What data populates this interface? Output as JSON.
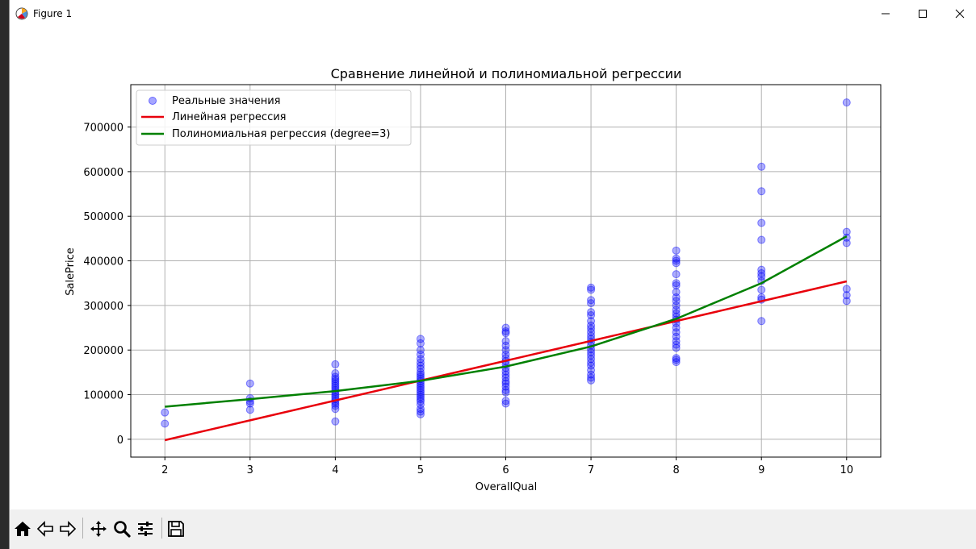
{
  "window": {
    "title": "Figure 1"
  },
  "toolbar": {
    "buttons": [
      {
        "name": "home-icon"
      },
      {
        "name": "back-icon"
      },
      {
        "name": "forward-icon"
      },
      {
        "name": "pan-icon"
      },
      {
        "name": "zoom-icon"
      },
      {
        "name": "configure-subplots-icon"
      },
      {
        "name": "save-icon"
      }
    ]
  },
  "colors": {
    "scatter": "#0000ff",
    "linear": "#e8000b",
    "poly": "#008000",
    "grid": "#b0b0b0"
  },
  "chart_data": {
    "type": "scatter",
    "title": "Сравнение линейной и полиномиальной регрессии",
    "xlabel": "OverallQual",
    "ylabel": "SalePrice",
    "xlim": [
      1.6,
      10.4
    ],
    "ylim": [
      -40000,
      795000
    ],
    "xticks": [
      2,
      3,
      4,
      5,
      6,
      7,
      8,
      9,
      10
    ],
    "yticks": [
      0,
      100000,
      200000,
      300000,
      400000,
      500000,
      600000,
      700000
    ],
    "grid": true,
    "legend_position": "upper-left",
    "series": [
      {
        "name": "Реальные значения",
        "kind": "scatter",
        "points": [
          [
            2,
            60000
          ],
          [
            2,
            35000
          ],
          [
            3,
            125000
          ],
          [
            3,
            92000
          ],
          [
            3,
            85000
          ],
          [
            3,
            80000
          ],
          [
            3,
            66000
          ],
          [
            4,
            168000
          ],
          [
            4,
            148000
          ],
          [
            4,
            140000
          ],
          [
            4,
            135000
          ],
          [
            4,
            130000
          ],
          [
            4,
            125000
          ],
          [
            4,
            120000
          ],
          [
            4,
            115000
          ],
          [
            4,
            110000
          ],
          [
            4,
            105000
          ],
          [
            4,
            100000
          ],
          [
            4,
            95000
          ],
          [
            4,
            90000
          ],
          [
            4,
            85000
          ],
          [
            4,
            80000
          ],
          [
            4,
            75000
          ],
          [
            4,
            68000
          ],
          [
            4,
            40000
          ],
          [
            5,
            225000
          ],
          [
            5,
            215000
          ],
          [
            5,
            200000
          ],
          [
            5,
            190000
          ],
          [
            5,
            180000
          ],
          [
            5,
            172000
          ],
          [
            5,
            165000
          ],
          [
            5,
            158000
          ],
          [
            5,
            150000
          ],
          [
            5,
            145000
          ],
          [
            5,
            140000
          ],
          [
            5,
            135000
          ],
          [
            5,
            130000
          ],
          [
            5,
            125000
          ],
          [
            5,
            120000
          ],
          [
            5,
            115000
          ],
          [
            5,
            110000
          ],
          [
            5,
            105000
          ],
          [
            5,
            100000
          ],
          [
            5,
            95000
          ],
          [
            5,
            90000
          ],
          [
            5,
            85000
          ],
          [
            5,
            78000
          ],
          [
            5,
            68000
          ],
          [
            5,
            62000
          ],
          [
            5,
            56000
          ],
          [
            6,
            250000
          ],
          [
            6,
            242000
          ],
          [
            6,
            238000
          ],
          [
            6,
            220000
          ],
          [
            6,
            210000
          ],
          [
            6,
            200000
          ],
          [
            6,
            190000
          ],
          [
            6,
            182000
          ],
          [
            6,
            175000
          ],
          [
            6,
            168000
          ],
          [
            6,
            160000
          ],
          [
            6,
            152000
          ],
          [
            6,
            145000
          ],
          [
            6,
            138000
          ],
          [
            6,
            130000
          ],
          [
            6,
            125000
          ],
          [
            6,
            118000
          ],
          [
            6,
            110000
          ],
          [
            6,
            105000
          ],
          [
            6,
            86000
          ],
          [
            6,
            80000
          ],
          [
            7,
            340000
          ],
          [
            7,
            335000
          ],
          [
            7,
            312000
          ],
          [
            7,
            305000
          ],
          [
            7,
            285000
          ],
          [
            7,
            278000
          ],
          [
            7,
            265000
          ],
          [
            7,
            255000
          ],
          [
            7,
            248000
          ],
          [
            7,
            240000
          ],
          [
            7,
            232000
          ],
          [
            7,
            225000
          ],
          [
            7,
            218000
          ],
          [
            7,
            210000
          ],
          [
            7,
            202000
          ],
          [
            7,
            195000
          ],
          [
            7,
            188000
          ],
          [
            7,
            180000
          ],
          [
            7,
            172000
          ],
          [
            7,
            165000
          ],
          [
            7,
            155000
          ],
          [
            7,
            145000
          ],
          [
            7,
            138000
          ],
          [
            7,
            132000
          ],
          [
            8,
            423000
          ],
          [
            8,
            405000
          ],
          [
            8,
            400000
          ],
          [
            8,
            395000
          ],
          [
            8,
            370000
          ],
          [
            8,
            350000
          ],
          [
            8,
            345000
          ],
          [
            8,
            330000
          ],
          [
            8,
            318000
          ],
          [
            8,
            310000
          ],
          [
            8,
            300000
          ],
          [
            8,
            290000
          ],
          [
            8,
            282000
          ],
          [
            8,
            275000
          ],
          [
            8,
            268000
          ],
          [
            8,
            260000
          ],
          [
            8,
            250000
          ],
          [
            8,
            240000
          ],
          [
            8,
            230000
          ],
          [
            8,
            220000
          ],
          [
            8,
            212000
          ],
          [
            8,
            205000
          ],
          [
            8,
            182000
          ],
          [
            8,
            178000
          ],
          [
            8,
            173000
          ],
          [
            9,
            611000
          ],
          [
            9,
            556000
          ],
          [
            9,
            485000
          ],
          [
            9,
            447000
          ],
          [
            9,
            380000
          ],
          [
            9,
            372000
          ],
          [
            9,
            365000
          ],
          [
            9,
            355000
          ],
          [
            9,
            335000
          ],
          [
            9,
            318000
          ],
          [
            9,
            313000
          ],
          [
            9,
            265000
          ],
          [
            10,
            755000
          ],
          [
            10,
            465000
          ],
          [
            10,
            452000
          ],
          [
            10,
            440000
          ],
          [
            10,
            337000
          ],
          [
            10,
            323000
          ],
          [
            10,
            310000
          ]
        ]
      },
      {
        "name": "Линейная регрессия",
        "kind": "line",
        "x": [
          2,
          3,
          4,
          5,
          6,
          7,
          8,
          9,
          10
        ],
        "y": [
          -2000,
          42500,
          87000,
          131500,
          176000,
          220500,
          265000,
          309500,
          354000
        ]
      },
      {
        "name": "Полиномиальная регрессия (degree=3)",
        "kind": "line",
        "x": [
          2,
          3,
          4,
          5,
          6,
          7,
          8,
          9,
          10
        ],
        "y": [
          73000,
          90000,
          108000,
          131000,
          163000,
          208000,
          270000,
          350000,
          455000
        ]
      }
    ]
  }
}
